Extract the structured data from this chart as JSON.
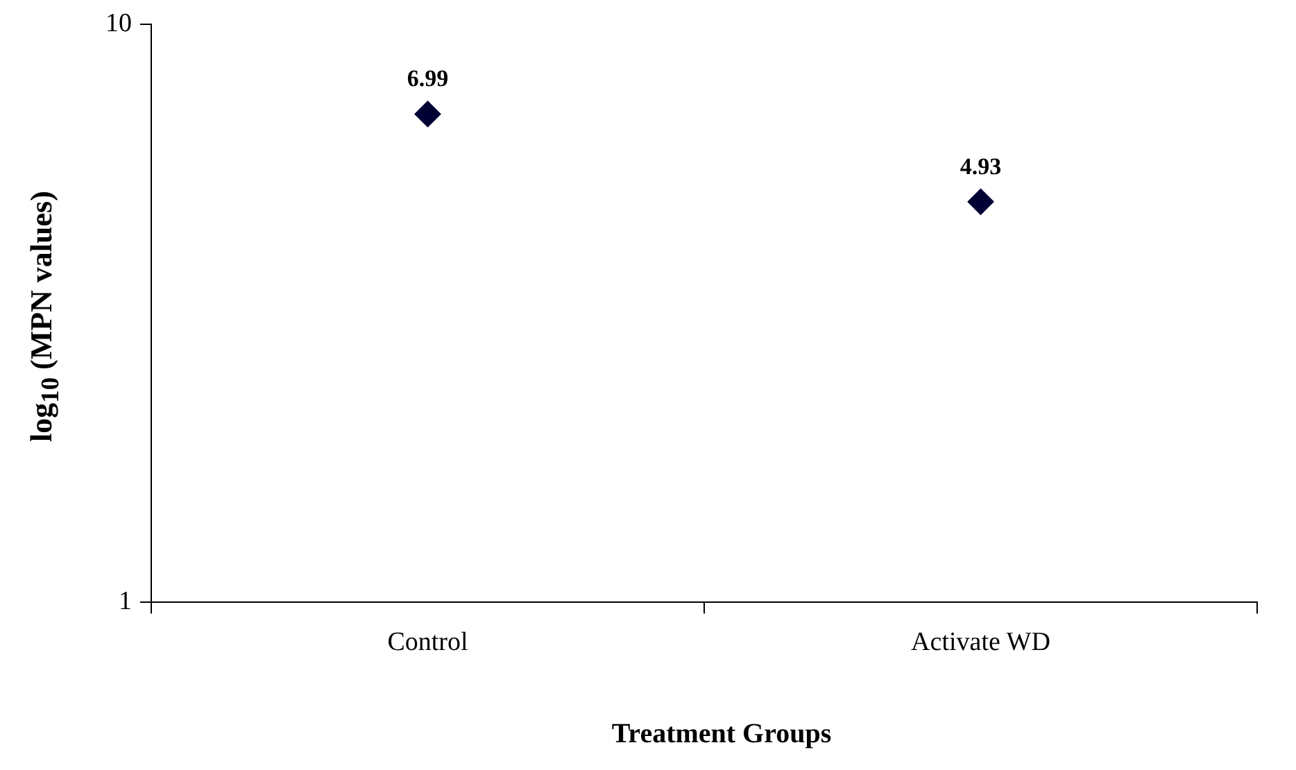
{
  "chart_data": {
    "type": "scatter",
    "xlabel": "Treatment Groups",
    "ylabel": "log$_{10}$ (MPN values)",
    "categories": [
      "Control",
      "Activate WD"
    ],
    "values": [
      6.99,
      4.93
    ],
    "color": "#000033",
    "marker": "diamond",
    "data_labels": true,
    "log": "y",
    "ylim": [
      1,
      10
    ],
    "yticks": [
      1,
      10
    ],
    "grid": false,
    "legend": false
  }
}
